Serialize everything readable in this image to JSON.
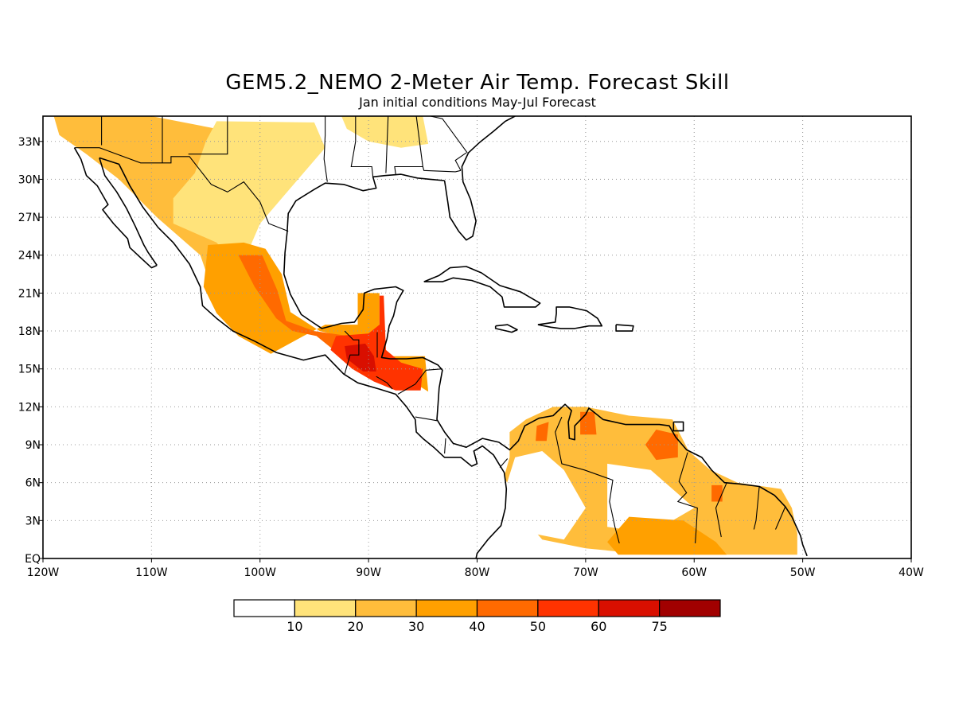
{
  "title": "GEM5.2_NEMO 2-Meter Air Temp. Forecast Skill",
  "subtitle": "Jan initial conditions  May-Jul Forecast",
  "map": {
    "lon_range": [
      -120,
      -40
    ],
    "lat_range": [
      0,
      35
    ],
    "x_ticks": [
      {
        "lon": -120,
        "label": "120W"
      },
      {
        "lon": -110,
        "label": "110W"
      },
      {
        "lon": -100,
        "label": "100W"
      },
      {
        "lon": -90,
        "label": "90W"
      },
      {
        "lon": -80,
        "label": "80W"
      },
      {
        "lon": -70,
        "label": "70W"
      },
      {
        "lon": -60,
        "label": "60W"
      },
      {
        "lon": -50,
        "label": "50W"
      },
      {
        "lon": -40,
        "label": "40W"
      }
    ],
    "y_ticks": [
      {
        "lat": 0,
        "label": "EQ"
      },
      {
        "lat": 3,
        "label": "3N"
      },
      {
        "lat": 6,
        "label": "6N"
      },
      {
        "lat": 9,
        "label": "9N"
      },
      {
        "lat": 12,
        "label": "12N"
      },
      {
        "lat": 15,
        "label": "15N"
      },
      {
        "lat": 18,
        "label": "18N"
      },
      {
        "lat": 21,
        "label": "21N"
      },
      {
        "lat": 24,
        "label": "24N"
      },
      {
        "lat": 27,
        "label": "27N"
      },
      {
        "lat": 30,
        "label": "30N"
      },
      {
        "lat": 33,
        "label": "33N"
      }
    ],
    "grid": true
  },
  "colorbar": {
    "levels": [
      "10",
      "20",
      "30",
      "40",
      "50",
      "60",
      "75"
    ],
    "colors": [
      "#ffffff",
      "#ffe37a",
      "#ffbd3b",
      "#ffa000",
      "#ff6a00",
      "#ff3300",
      "#d90f00",
      "#a10000"
    ]
  },
  "skill_regions": [
    {
      "level": 2,
      "lonlat": [
        [
          -119,
          35
        ],
        [
          -110,
          35
        ],
        [
          -104,
          34
        ],
        [
          -97,
          33.5
        ],
        [
          -96,
          31
        ],
        [
          -99,
          28
        ],
        [
          -102,
          25.5
        ],
        [
          -104.5,
          21.5
        ],
        [
          -105.5,
          24
        ],
        [
          -109.5,
          27
        ],
        [
          -113,
          30
        ],
        [
          -116,
          32
        ],
        [
          -118.5,
          33.5
        ]
      ]
    },
    {
      "level": 1,
      "lonlat": [
        [
          -104,
          34.6
        ],
        [
          -95,
          34.5
        ],
        [
          -94,
          32.5
        ],
        [
          -96,
          30.5
        ],
        [
          -98,
          28.5
        ],
        [
          -100,
          26.5
        ],
        [
          -101,
          24.5
        ],
        [
          -103,
          24
        ],
        [
          -104,
          25
        ],
        [
          -108,
          26.5
        ],
        [
          -108,
          28.5
        ],
        [
          -106,
          30.5
        ],
        [
          -105,
          33
        ]
      ]
    },
    {
      "level": 1,
      "lonlat": [
        [
          -92.5,
          35
        ],
        [
          -85,
          35
        ],
        [
          -84.5,
          32.8
        ],
        [
          -87,
          32.5
        ],
        [
          -90,
          33
        ],
        [
          -92,
          34
        ]
      ]
    },
    {
      "level": 3,
      "lonlat": [
        [
          -104.8,
          24.8
        ],
        [
          -101.5,
          25
        ],
        [
          -99.5,
          24.5
        ],
        [
          -98,
          22.5
        ],
        [
          -97.2,
          19.5
        ],
        [
          -94.5,
          18
        ],
        [
          -91.5,
          17.4
        ],
        [
          -90,
          17
        ],
        [
          -88.5,
          15
        ],
        [
          -86,
          14
        ],
        [
          -84.5,
          13.2
        ],
        [
          -84.8,
          16
        ],
        [
          -88.5,
          16
        ],
        [
          -89,
          18
        ],
        [
          -89,
          21
        ],
        [
          -91,
          21
        ],
        [
          -91,
          18.5
        ],
        [
          -94,
          18.5
        ],
        [
          -96,
          17.6
        ],
        [
          -99,
          16.2
        ],
        [
          -102,
          17.6
        ],
        [
          -104,
          19.4
        ],
        [
          -105.2,
          21.5
        ]
      ]
    },
    {
      "level": 4,
      "lonlat": [
        [
          -102,
          24
        ],
        [
          -99.8,
          24
        ],
        [
          -98.4,
          21.2
        ],
        [
          -97.6,
          18.8
        ],
        [
          -95,
          18
        ],
        [
          -91,
          17.5
        ],
        [
          -90,
          16.5
        ],
        [
          -90.5,
          15
        ],
        [
          -92.5,
          16
        ],
        [
          -94.8,
          17.6
        ],
        [
          -97,
          18
        ],
        [
          -98.5,
          19
        ],
        [
          -100.5,
          21.5
        ]
      ]
    },
    {
      "level": 5,
      "lonlat": [
        [
          -93,
          17.6
        ],
        [
          -90,
          17.8
        ],
        [
          -89,
          18.5
        ],
        [
          -89,
          20.8
        ],
        [
          -88.6,
          20.8
        ],
        [
          -88.4,
          16.5
        ],
        [
          -87,
          15.5
        ],
        [
          -85,
          15
        ],
        [
          -85.2,
          13.3
        ],
        [
          -87.5,
          13.3
        ],
        [
          -89.5,
          14
        ],
        [
          -91.5,
          15
        ],
        [
          -93.5,
          16.5
        ]
      ]
    },
    {
      "level": 6,
      "lonlat": [
        [
          -92.2,
          16.8
        ],
        [
          -90.3,
          17
        ],
        [
          -89.5,
          16
        ],
        [
          -89.3,
          14.8
        ],
        [
          -90.5,
          14.8
        ],
        [
          -92,
          15.8
        ]
      ]
    },
    {
      "level": 2,
      "lonlat": [
        [
          -77,
          10
        ],
        [
          -75.5,
          11
        ],
        [
          -73,
          12
        ],
        [
          -70,
          12
        ],
        [
          -66,
          11.3
        ],
        [
          -62,
          11
        ],
        [
          -60.5,
          8.5
        ],
        [
          -58.5,
          7
        ],
        [
          -56,
          6
        ],
        [
          -52,
          5.5
        ],
        [
          -51,
          4
        ],
        [
          -50.5,
          2
        ],
        [
          -50.5,
          0.3
        ],
        [
          -64,
          0.3
        ],
        [
          -70,
          0.8
        ],
        [
          -74,
          1.5
        ],
        [
          -76,
          3.5
        ],
        [
          -77.5,
          6.5
        ],
        [
          -77,
          8
        ]
      ]
    },
    {
      "level": 0,
      "lonlat": [
        [
          -76.5,
          8
        ],
        [
          -74,
          8.5
        ],
        [
          -72,
          7
        ],
        [
          -70,
          4
        ],
        [
          -72,
          1.5
        ],
        [
          -75,
          2
        ],
        [
          -77.5,
          1.5
        ],
        [
          -77.6,
          5
        ]
      ]
    },
    {
      "level": 0,
      "lonlat": [
        [
          -68,
          7.5
        ],
        [
          -64,
          7
        ],
        [
          -60,
          4
        ],
        [
          -64,
          2
        ],
        [
          -68,
          2.5
        ]
      ]
    },
    {
      "level": 3,
      "lonlat": [
        [
          -66,
          3.3
        ],
        [
          -61,
          3
        ],
        [
          -58,
          1.3
        ],
        [
          -57,
          0.3
        ],
        [
          -67,
          0.3
        ],
        [
          -68,
          1.3
        ]
      ]
    },
    {
      "level": 4,
      "lonlat": [
        [
          -63.5,
          10.2
        ],
        [
          -61.5,
          9.8
        ],
        [
          -61.5,
          8
        ],
        [
          -63.5,
          7.8
        ],
        [
          -64.5,
          9
        ]
      ]
    },
    {
      "level": 4,
      "lonlat": [
        [
          -70.5,
          11.6
        ],
        [
          -69.2,
          11.6
        ],
        [
          -69,
          9.8
        ],
        [
          -70.5,
          9.8
        ]
      ]
    },
    {
      "level": 4,
      "lonlat": [
        [
          -74.5,
          10.5
        ],
        [
          -73.4,
          10.8
        ],
        [
          -73.6,
          9.3
        ],
        [
          -74.6,
          9.3
        ]
      ]
    },
    {
      "level": 4,
      "lonlat": [
        [
          -58.4,
          5.8
        ],
        [
          -57.4,
          5.8
        ],
        [
          -57.4,
          4.5
        ],
        [
          -58.4,
          4.5
        ]
      ]
    }
  ]
}
